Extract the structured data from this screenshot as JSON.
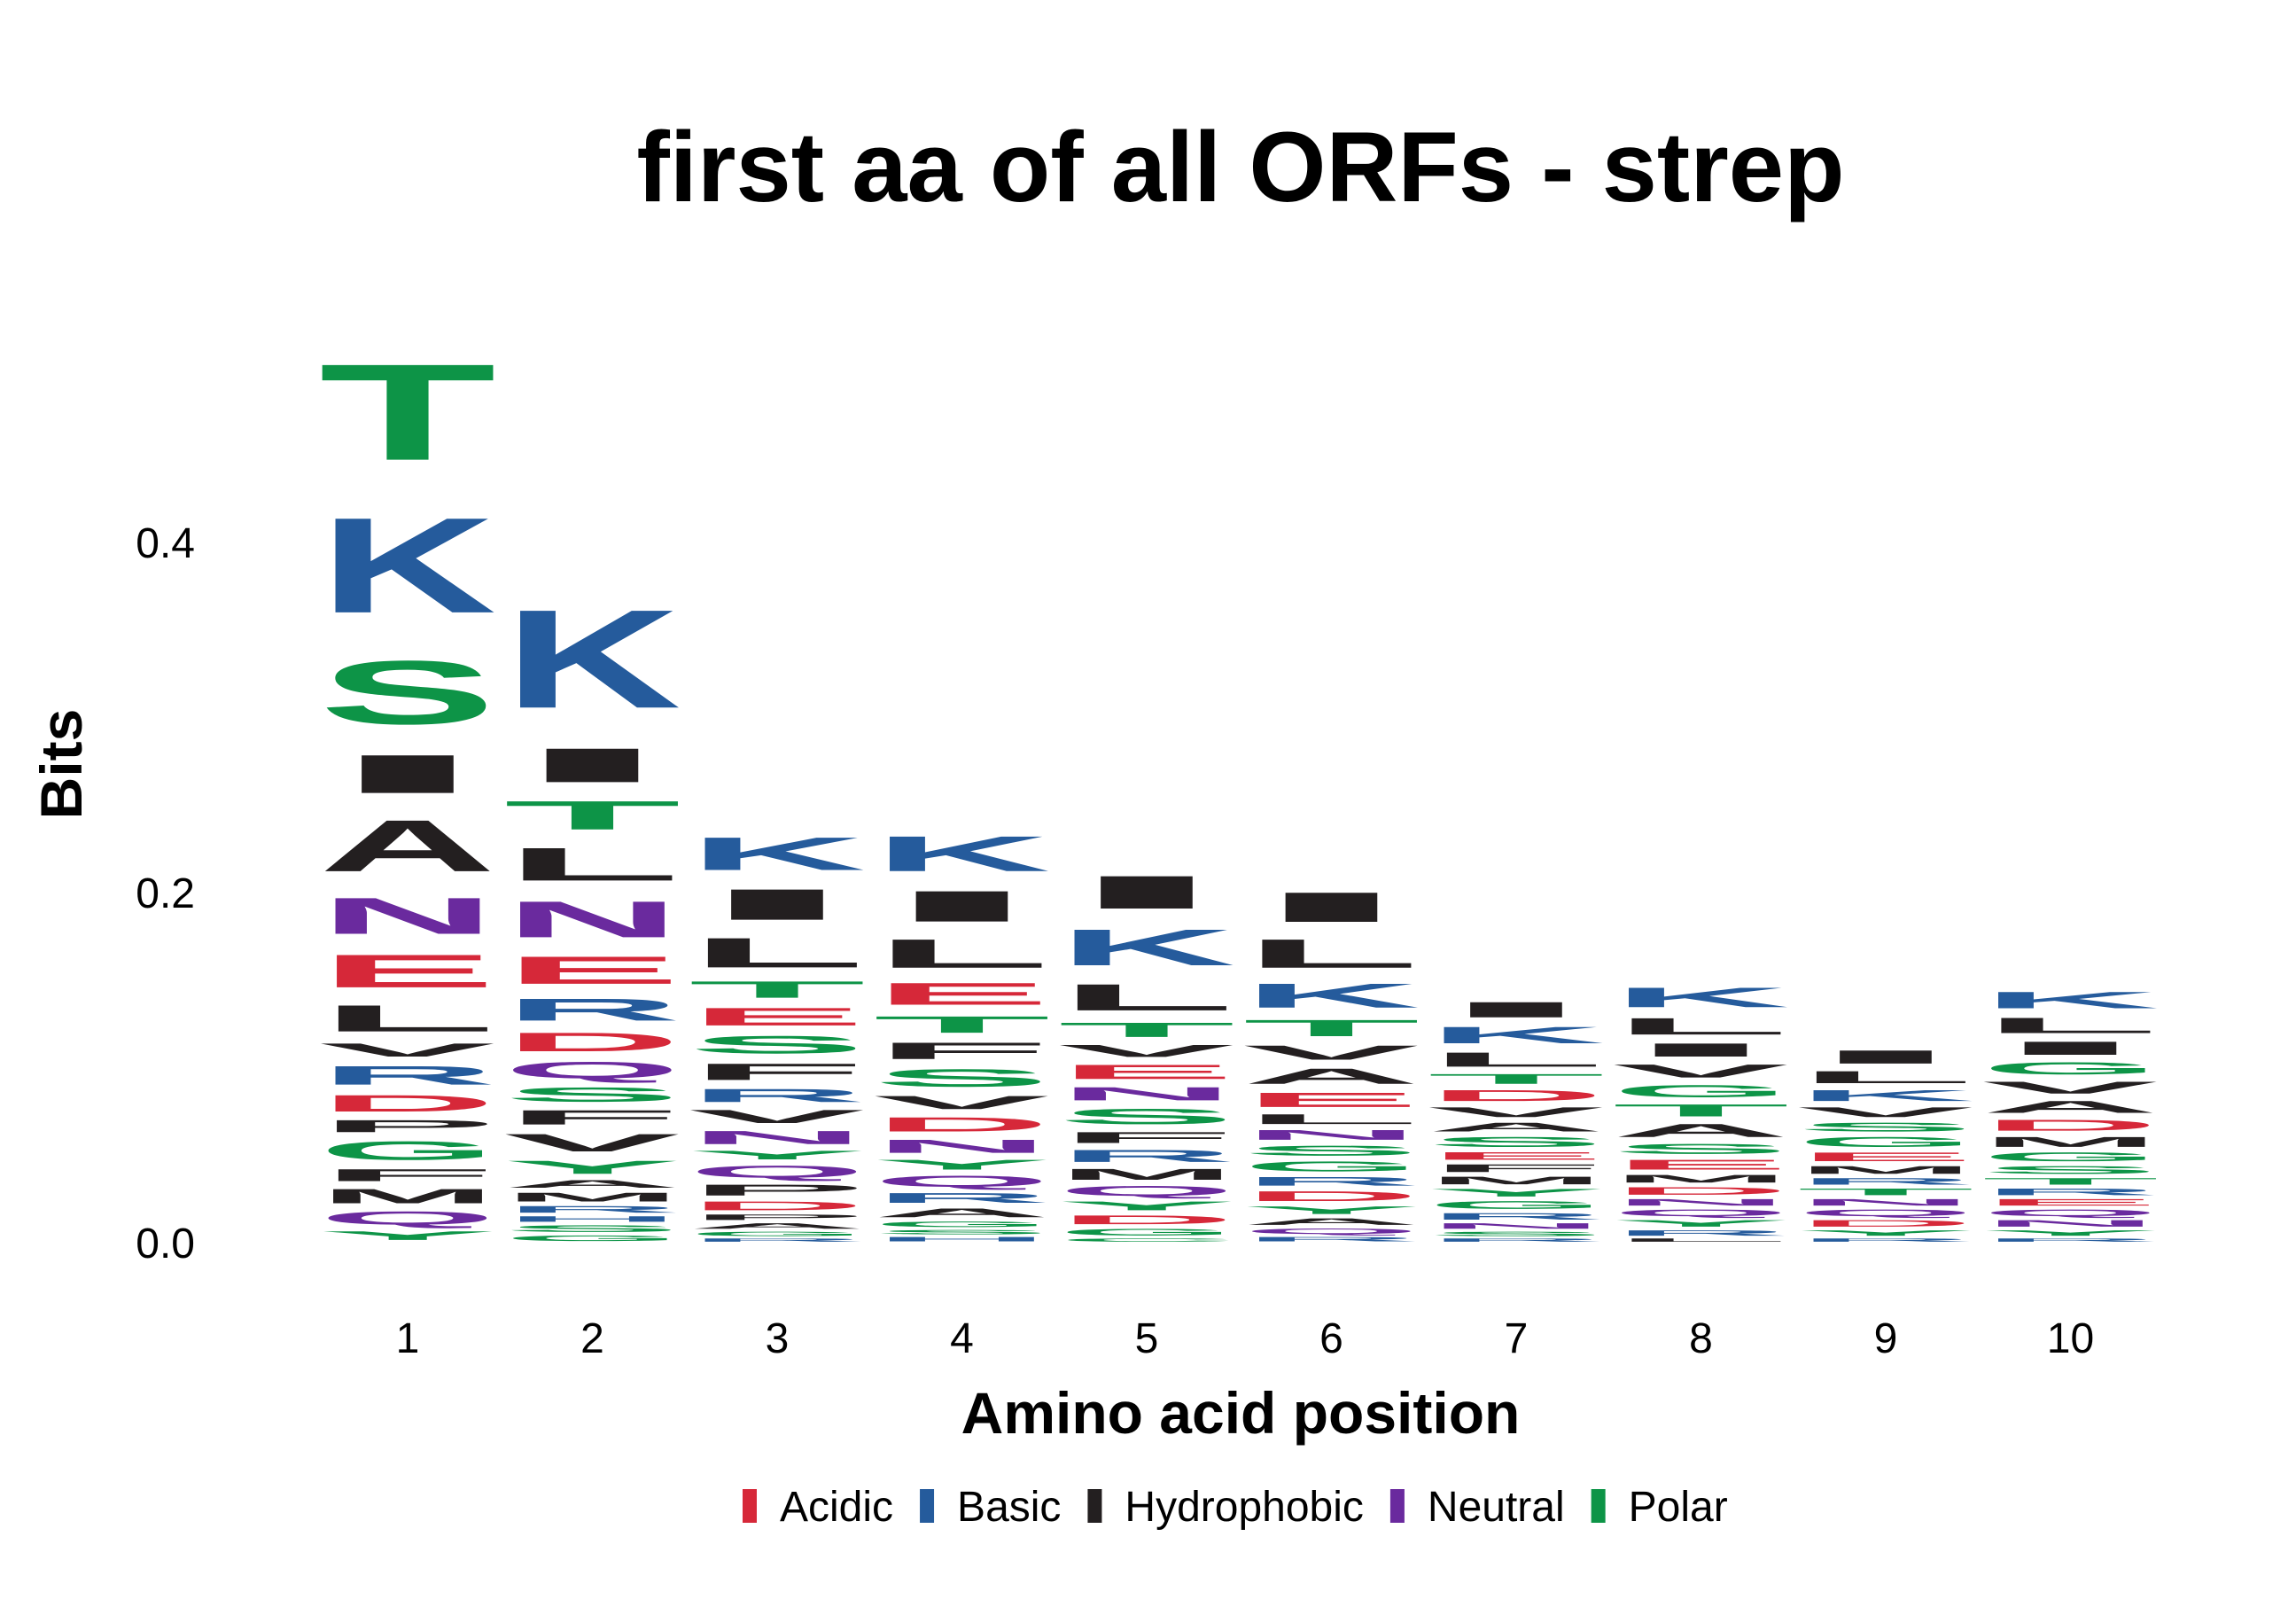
{
  "chart_data": {
    "type": "sequence-logo",
    "title": "first aa of all ORFs - strep",
    "xlabel": "Amino acid position",
    "ylabel": "Bits",
    "ylim": [
      0,
      0.5
    ],
    "yticks": [
      "0.0",
      "0.2",
      "0.4"
    ],
    "ytick_values": [
      0,
      0.2,
      0.4
    ],
    "positions": [
      "1",
      "2",
      "3",
      "4",
      "5",
      "6",
      "7",
      "8",
      "9",
      "10"
    ],
    "grid": false,
    "legend_position": "bottom",
    "legend": [
      {
        "name": "Acidic",
        "color": "#d62839"
      },
      {
        "name": "Basic",
        "color": "#255b9c"
      },
      {
        "name": "Hydrophobic",
        "color": "#231f20"
      },
      {
        "name": "Neutral",
        "color": "#6a2a9e"
      },
      {
        "name": "Polar",
        "color": "#0d9447"
      }
    ],
    "letter_colors": {
      "D": "#d62839",
      "E": "#d62839",
      "K": "#255b9c",
      "R": "#255b9c",
      "H": "#255b9c",
      "A": "#231f20",
      "V": "#231f20",
      "L": "#231f20",
      "I": "#231f20",
      "P": "#231f20",
      "W": "#231f20",
      "F": "#231f20",
      "M": "#231f20",
      "N": "#6a2a9e",
      "Q": "#6a2a9e",
      "S": "#0d9447",
      "G": "#0d9447",
      "T": "#0d9447",
      "C": "#0d9447",
      "Y": "#0d9447"
    },
    "stacks": [
      [
        [
          "Y",
          0.008
        ],
        [
          "Q",
          0.012
        ],
        [
          "M",
          0.013
        ],
        [
          "F",
          0.011
        ],
        [
          "G",
          0.017
        ],
        [
          "P",
          0.011
        ],
        [
          "D",
          0.015
        ],
        [
          "R",
          0.017
        ],
        [
          "V",
          0.012
        ],
        [
          "L",
          0.024
        ],
        [
          "E",
          0.03
        ],
        [
          "N",
          0.033
        ],
        [
          "A",
          0.047
        ],
        [
          "I",
          0.035
        ],
        [
          "S",
          0.058
        ],
        [
          "K",
          0.087
        ],
        [
          "T",
          0.088
        ]
      ],
      [
        [
          "G",
          0.005
        ],
        [
          "S",
          0.006
        ],
        [
          "H",
          0.005
        ],
        [
          "R",
          0.006
        ],
        [
          "M",
          0.008
        ],
        [
          "A",
          0.007
        ],
        [
          "Y",
          0.012
        ],
        [
          "V",
          0.016
        ],
        [
          "F",
          0.013
        ],
        [
          "S",
          0.013
        ],
        [
          "Q",
          0.015
        ],
        [
          "D",
          0.017
        ],
        [
          "R",
          0.02
        ],
        [
          "E",
          0.025
        ],
        [
          "N",
          0.033
        ],
        [
          "L",
          0.03
        ],
        [
          "T",
          0.026
        ],
        [
          "I",
          0.031
        ],
        [
          "K",
          0.09
        ]
      ],
      [
        [
          "R",
          0.003
        ],
        [
          "G",
          0.004
        ],
        [
          "A",
          0.005
        ],
        [
          "P",
          0.005
        ],
        [
          "D",
          0.008
        ],
        [
          "P",
          0.01
        ],
        [
          "Q",
          0.011
        ],
        [
          "Y",
          0.008
        ],
        [
          "N",
          0.012
        ],
        [
          "V",
          0.012
        ],
        [
          "R",
          0.012
        ],
        [
          "F",
          0.015
        ],
        [
          "S",
          0.016
        ],
        [
          "E",
          0.016
        ],
        [
          "T",
          0.015
        ],
        [
          "L",
          0.027
        ],
        [
          "I",
          0.028
        ],
        [
          "K",
          0.03
        ]
      ],
      [
        [
          "H",
          0.004
        ],
        [
          "S",
          0.004
        ],
        [
          "G",
          0.005
        ],
        [
          "A",
          0.008
        ],
        [
          "R",
          0.009
        ],
        [
          "Q",
          0.01
        ],
        [
          "Y",
          0.009
        ],
        [
          "N",
          0.012
        ],
        [
          "D",
          0.013
        ],
        [
          "V",
          0.012
        ],
        [
          "S",
          0.016
        ],
        [
          "F",
          0.015
        ],
        [
          "T",
          0.015
        ],
        [
          "E",
          0.02
        ],
        [
          "L",
          0.026
        ],
        [
          "I",
          0.028
        ],
        [
          "K",
          0.032
        ]
      ],
      [
        [
          "C",
          0.003
        ],
        [
          "G",
          0.006
        ],
        [
          "D",
          0.008
        ],
        [
          "Y",
          0.008
        ],
        [
          "Q",
          0.009
        ],
        [
          "M",
          0.01
        ],
        [
          "R",
          0.011
        ],
        [
          "F",
          0.01
        ],
        [
          "S",
          0.014
        ],
        [
          "N",
          0.012
        ],
        [
          "E",
          0.013
        ],
        [
          "V",
          0.011
        ],
        [
          "T",
          0.013
        ],
        [
          "L",
          0.024
        ],
        [
          "K",
          0.033
        ],
        [
          "I",
          0.03
        ]
      ],
      [
        [
          "R",
          0.004
        ],
        [
          "Q",
          0.005
        ],
        [
          "A",
          0.006
        ],
        [
          "Y",
          0.007
        ],
        [
          "D",
          0.009
        ],
        [
          "R",
          0.008
        ],
        [
          "G",
          0.009
        ],
        [
          "S",
          0.009
        ],
        [
          "N",
          0.009
        ],
        [
          "L",
          0.009
        ],
        [
          "E",
          0.013
        ],
        [
          "A",
          0.014
        ],
        [
          "V",
          0.013
        ],
        [
          "T",
          0.015
        ],
        [
          "K",
          0.022
        ],
        [
          "L",
          0.026
        ],
        [
          "I",
          0.027
        ]
      ],
      [
        [
          "R",
          0.003
        ],
        [
          "S",
          0.004
        ],
        [
          "N",
          0.005
        ],
        [
          "R",
          0.006
        ],
        [
          "G",
          0.007
        ],
        [
          "Y",
          0.007
        ],
        [
          "M",
          0.007
        ],
        [
          "F",
          0.007
        ],
        [
          "E",
          0.007
        ],
        [
          "S",
          0.009
        ],
        [
          "A",
          0.008
        ],
        [
          "V",
          0.009
        ],
        [
          "D",
          0.01
        ],
        [
          "T",
          0.009
        ],
        [
          "L",
          0.013
        ],
        [
          "K",
          0.015
        ],
        [
          "I",
          0.014
        ]
      ],
      [
        [
          "L",
          0.003
        ],
        [
          "R",
          0.005
        ],
        [
          "Y",
          0.006
        ],
        [
          "Q",
          0.006
        ],
        [
          "N",
          0.006
        ],
        [
          "D",
          0.007
        ],
        [
          "M",
          0.007
        ],
        [
          "E",
          0.009
        ],
        [
          "S",
          0.009
        ],
        [
          "A",
          0.012
        ],
        [
          "T",
          0.011
        ],
        [
          "G",
          0.011
        ],
        [
          "V",
          0.012
        ],
        [
          "I",
          0.012
        ],
        [
          "L",
          0.015
        ],
        [
          "K",
          0.018
        ]
      ],
      [
        [
          "R",
          0.003
        ],
        [
          "Y",
          0.005
        ],
        [
          "D",
          0.006
        ],
        [
          "Q",
          0.006
        ],
        [
          "N",
          0.006
        ],
        [
          "T",
          0.006
        ],
        [
          "R",
          0.006
        ],
        [
          "M",
          0.007
        ],
        [
          "E",
          0.008
        ],
        [
          "G",
          0.009
        ],
        [
          "S",
          0.008
        ],
        [
          "V",
          0.009
        ],
        [
          "K",
          0.01
        ],
        [
          "L",
          0.011
        ],
        [
          "I",
          0.012
        ]
      ],
      [
        [
          "R",
          0.003
        ],
        [
          "Y",
          0.005
        ],
        [
          "N",
          0.006
        ],
        [
          "Q",
          0.006
        ],
        [
          "E",
          0.006
        ],
        [
          "R",
          0.006
        ],
        [
          "T",
          0.006
        ],
        [
          "S",
          0.007
        ],
        [
          "G",
          0.008
        ],
        [
          "M",
          0.009
        ],
        [
          "D",
          0.01
        ],
        [
          "A",
          0.011
        ],
        [
          "V",
          0.011
        ],
        [
          "G",
          0.011
        ],
        [
          "I",
          0.012
        ],
        [
          "L",
          0.014
        ],
        [
          "K",
          0.015
        ]
      ]
    ]
  }
}
